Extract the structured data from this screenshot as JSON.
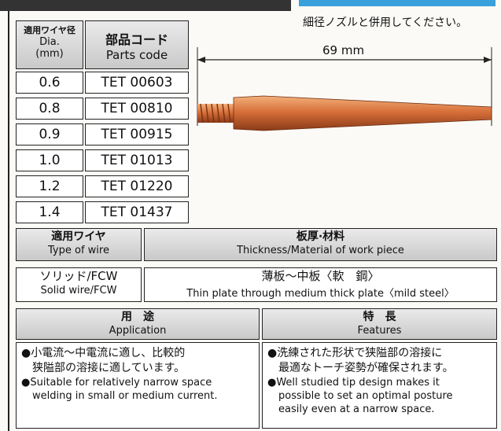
{
  "note": "細径ノズルと併用してください。",
  "dimension": "69 mm",
  "parts_table": {
    "header": {
      "dia": [
        "適用ワイヤ径",
        "Dia.",
        "(mm)"
      ],
      "code": [
        "部品コード",
        "Parts code"
      ]
    },
    "rows": [
      [
        "0.6",
        "TET 00603"
      ],
      [
        "0.8",
        "TET 00810"
      ],
      [
        "0.9",
        "TET 00915"
      ],
      [
        "1.0",
        "TET 01013"
      ],
      [
        "1.2",
        "TET 01220"
      ],
      [
        "1.4",
        "TET 01437"
      ]
    ]
  },
  "wire_table": {
    "header": {
      "type": [
        "適用ワイヤ",
        "Type of wire"
      ],
      "material": [
        "板厚·材料",
        "Thickness/Material of work piece"
      ]
    },
    "row": {
      "type": [
        "ソリッド/FCW",
        "Solid wire/FCW"
      ],
      "material": [
        "薄板～中板〈軟　鋼〉",
        "Thin plate through medium thick plate〈mild steel〉"
      ]
    }
  },
  "application": {
    "title": [
      "用　途",
      "Application"
    ],
    "lines_ja": [
      "●小電流～中電流に適し、比較的",
      "狭隘部の溶接に適しています。"
    ],
    "lines_en": [
      "●Suitable for relatively narrow space",
      "welding in small or medium current."
    ]
  },
  "features": {
    "title": [
      "特　長",
      "Features"
    ],
    "lines_ja": [
      "●洗練された形状で狭隘部の溶接に",
      "最適なトーチ姿勢が確保されます。"
    ],
    "lines_en": [
      "●Well studied tip design makes it",
      "possible to set an optimal posture",
      "easily even at a narrow space."
    ]
  }
}
